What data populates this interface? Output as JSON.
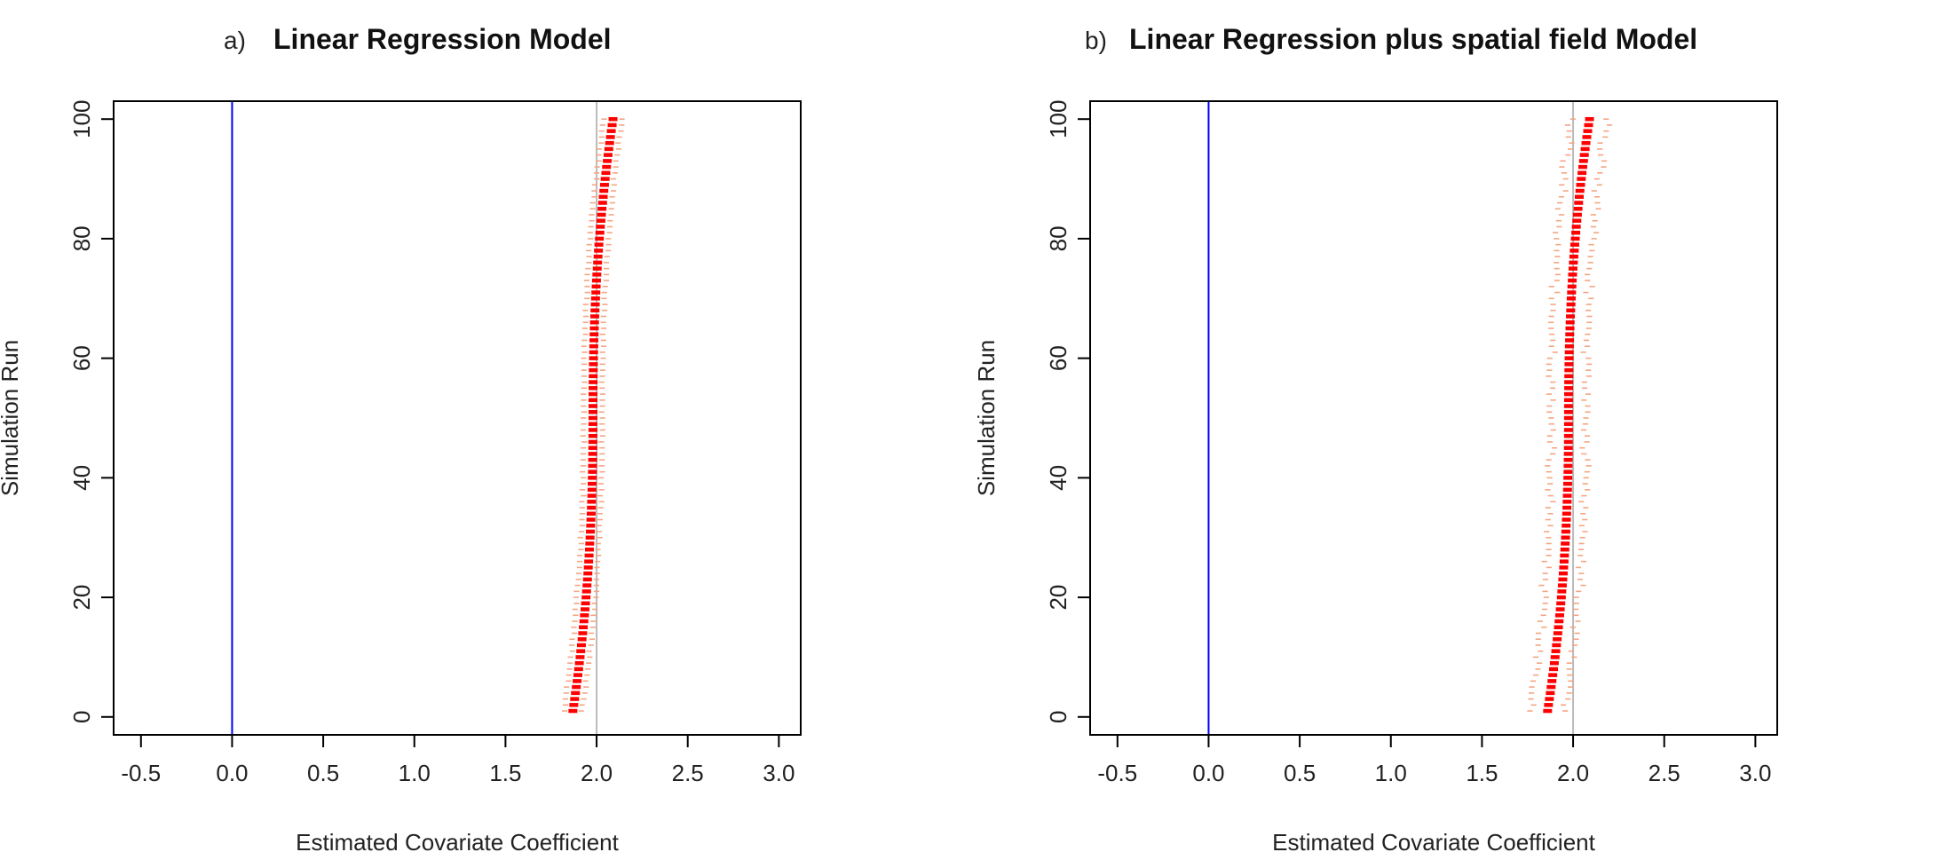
{
  "chart_data": [
    {
      "panel_letter": "a)",
      "title": "Linear Regression Model",
      "type": "scatter",
      "xlabel": "Estimated Covariate Coefficient",
      "ylabel": "Simulation Run",
      "xlim": [
        -0.65,
        3.12
      ],
      "ylim": [
        -3,
        103
      ],
      "xticks": [
        "-0.5",
        "0.0",
        "0.5",
        "1.0",
        "1.5",
        "2.0",
        "2.5",
        "3.0"
      ],
      "yticks": [
        "0",
        "20",
        "40",
        "60",
        "80",
        "100"
      ],
      "reference_lines": [
        {
          "x": 0.0,
          "color": "#0000ff"
        },
        {
          "x": 2.0,
          "color": "#bbbbbb"
        }
      ],
      "estimate_color": "#ff0000",
      "interval_color": "#f4a582",
      "runs": 100,
      "estimate_range": [
        1.87,
        2.09
      ],
      "interval_half_width": [
        0.03,
        0.04
      ]
    },
    {
      "panel_letter": "b)",
      "title": "Linear Regression plus spatial field Model",
      "type": "scatter",
      "xlabel": "Estimated Covariate Coefficient",
      "ylabel": "Simulation Run",
      "xlim": [
        -0.65,
        3.12
      ],
      "ylim": [
        -3,
        103
      ],
      "xticks": [
        "-0.5",
        "0.0",
        "0.5",
        "1.0",
        "1.5",
        "2.0",
        "2.5",
        "3.0"
      ],
      "yticks": [
        "0",
        "20",
        "40",
        "60",
        "80",
        "100"
      ],
      "reference_lines": [
        {
          "x": 0.0,
          "color": "#0000ff"
        },
        {
          "x": 2.0,
          "color": "#bbbbbb"
        }
      ],
      "estimate_color": "#ff0000",
      "interval_color": "#f4a582",
      "runs": 100,
      "estimate_range": [
        1.86,
        2.09
      ],
      "interval_half_width": [
        0.06,
        0.1
      ]
    }
  ]
}
